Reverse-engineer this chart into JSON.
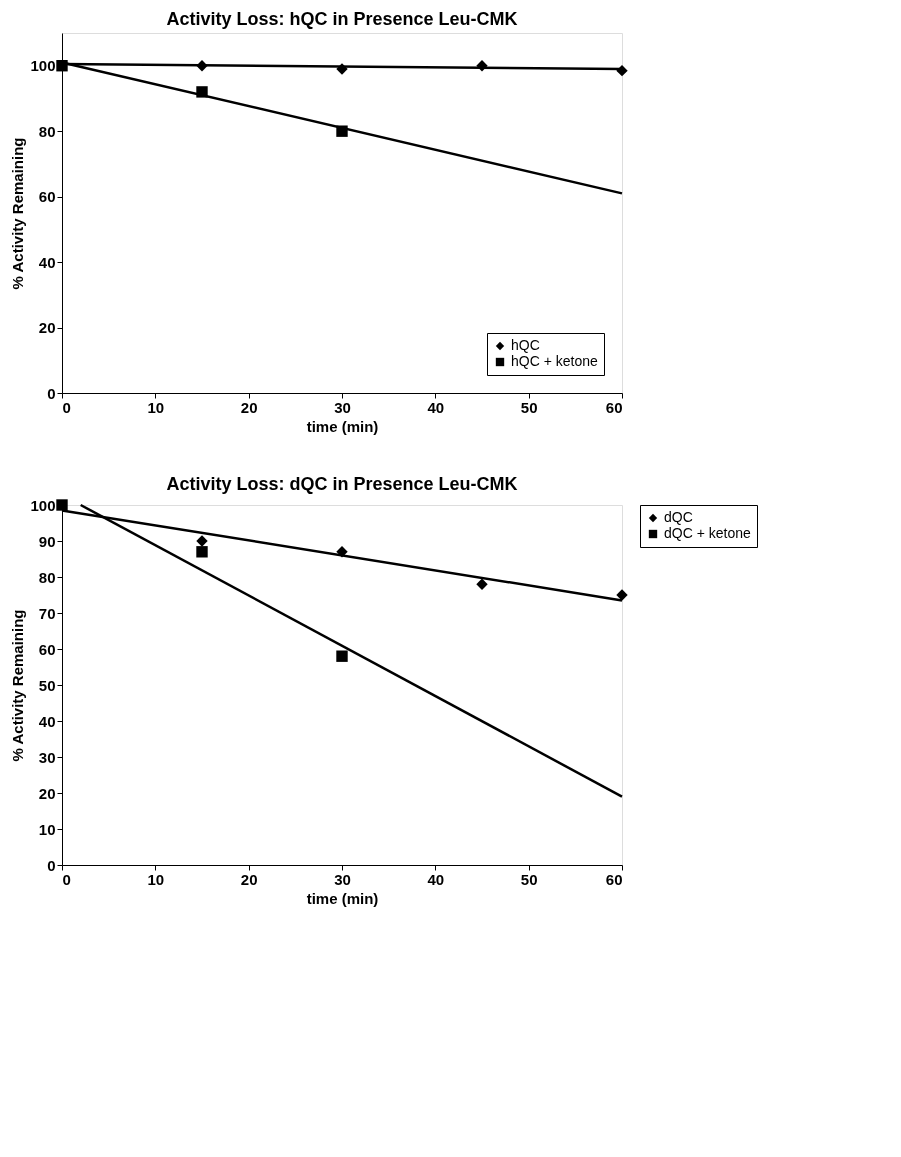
{
  "chart_data": [
    {
      "type": "scatter",
      "title": "Activity Loss: hQC in Presence Leu-CMK",
      "xlabel": "time (min)",
      "ylabel": "% Activity Remaining",
      "xlim": [
        0,
        60
      ],
      "xticks": [
        0,
        10,
        20,
        30,
        40,
        50,
        60
      ],
      "ylim": [
        0,
        110
      ],
      "yticks": [
        0,
        20,
        40,
        60,
        80,
        100
      ],
      "grid": false,
      "legend": "bottom right",
      "series": [
        {
          "name": "hQC",
          "color": "#000000",
          "marker": "diamond",
          "x": [
            15,
            30,
            45,
            60
          ],
          "values": [
            100,
            99,
            100,
            98.5
          ]
        },
        {
          "name": "hQC + ketone",
          "color": "#000000",
          "marker": "square",
          "x": [
            0,
            15,
            30
          ],
          "values": [
            100,
            92,
            80
          ]
        },
        {
          "type": "line",
          "color": "#000000",
          "x": [
            0,
            60
          ],
          "values": [
            100.5,
            99
          ]
        },
        {
          "type": "line",
          "color": "#000000",
          "x": [
            0,
            60
          ],
          "values": [
            101,
            61
          ]
        }
      ]
    },
    {
      "type": "scatter",
      "title": "Activity Loss: dQC in Presence Leu-CMK",
      "xlabel": "time (min)",
      "ylabel": "% Activity Remaining",
      "xlim": [
        0,
        60
      ],
      "xticks": [
        0,
        10,
        20,
        30,
        40,
        50,
        60
      ],
      "ylim": [
        0,
        100
      ],
      "yticks": [
        0,
        10,
        20,
        30,
        40,
        50,
        60,
        70,
        80,
        90,
        100
      ],
      "grid": false,
      "legend": "right",
      "series": [
        {
          "name": "dQC",
          "color": "#000000",
          "marker": "diamond",
          "x": [
            15,
            30,
            45,
            60
          ],
          "values": [
            90,
            87,
            78,
            75
          ]
        },
        {
          "name": "dQC + ketone",
          "color": "#000000",
          "marker": "square",
          "x": [
            0,
            15,
            30
          ],
          "values": [
            100,
            87,
            58
          ]
        },
        {
          "type": "line",
          "color": "#000000",
          "x": [
            0,
            60
          ],
          "values": [
            98.5,
            73.5
          ]
        },
        {
          "type": "line",
          "color": "#000000",
          "x": [
            2,
            60
          ],
          "values": [
            100,
            19
          ]
        }
      ]
    }
  ]
}
